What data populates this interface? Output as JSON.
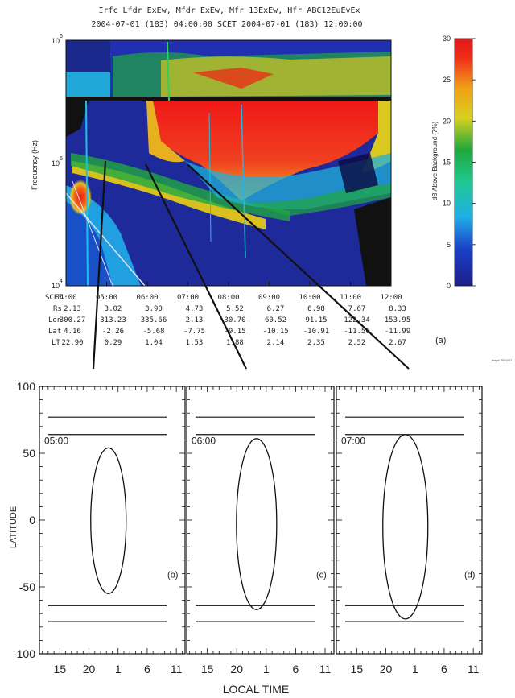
{
  "header": {
    "line1": "Irfc Lfdr ExEw, Mfdr ExEw, Mfr 13ExEw, Hfr ABC12EuEvEx",
    "line2": "2004-07-01 (183) 04:00:00    SCET    2004-07-01 (183) 12:00:00"
  },
  "spectrogram": {
    "ylabel": "Frequency (Hz)",
    "yticks": [
      {
        "label": "10",
        "exp": "6"
      },
      {
        "label": "10",
        "exp": "5"
      },
      {
        "label": "10",
        "exp": "4"
      }
    ],
    "xticks": [
      "04:00",
      "05:00",
      "06:00",
      "07:00",
      "08:00",
      "09:00",
      "10:00",
      "11:00",
      "12:00"
    ],
    "colors": {
      "bg": "#1a1a7a",
      "hi": "#e81818",
      "mid": "#f0c020",
      "green": "#20b040",
      "cyan": "#20c0e0"
    }
  },
  "ephemeris": {
    "labels": [
      "SCET",
      "Rs",
      "Lon",
      "Lat",
      "LT"
    ],
    "rows": [
      [
        "2.13",
        "3.02",
        "3.90",
        "4.73",
        "5.52",
        "6.27",
        "6.98",
        "7.67",
        "8.33"
      ],
      [
        "300.27",
        "313.23",
        "335.66",
        "2.13",
        "30.70",
        "60.52",
        "91.15",
        "122.34",
        "153.95"
      ],
      [
        "4.16",
        "-2.26",
        "-5.68",
        "-7.75",
        "-9.15",
        "-10.15",
        "-10.91",
        "-11.50",
        "-11.99"
      ],
      [
        "22.90",
        "0.29",
        "1.04",
        "1.53",
        "1.88",
        "2.14",
        "2.35",
        "2.52",
        "2.67"
      ]
    ]
  },
  "colorbar": {
    "label": "dB Above Background (7%)",
    "ticks": [
      "30",
      "25",
      "20",
      "15",
      "10",
      "5",
      "0"
    ]
  },
  "panel_label_a": "(a)",
  "credit": "Jeese 2004/07",
  "lower": {
    "ylabel": "LATITUDE",
    "xlabel": "LOCAL TIME",
    "yticks": [
      "100",
      "50",
      "0",
      "-50",
      "-100"
    ],
    "xticks": [
      "15",
      "20",
      "1",
      "6",
      "11"
    ],
    "panels": [
      {
        "time": "05:00",
        "tag": "(b)"
      },
      {
        "time": "06:00",
        "tag": "(c)"
      },
      {
        "time": "07:00",
        "tag": "(d)"
      }
    ]
  },
  "chart_data": {
    "type": "line",
    "title": "",
    "xlabel": "LOCAL TIME",
    "ylabel": "LATITUDE",
    "ylim": [
      -100,
      100
    ],
    "series": [
      {
        "panel": "05:00",
        "oval_lat_range": [
          -55,
          54
        ],
        "center_lt": 1,
        "aurora_lines_lat": [
          77,
          64,
          -64,
          -76
        ]
      },
      {
        "panel": "06:00",
        "oval_lat_range": [
          -67,
          61
        ],
        "center_lt": 1,
        "aurora_lines_lat": [
          77,
          64,
          -64,
          -76
        ]
      },
      {
        "panel": "07:00",
        "oval_lat_range": [
          -74,
          64
        ],
        "center_lt": 1,
        "aurora_lines_lat": [
          77,
          64,
          -64,
          -76
        ]
      }
    ]
  }
}
